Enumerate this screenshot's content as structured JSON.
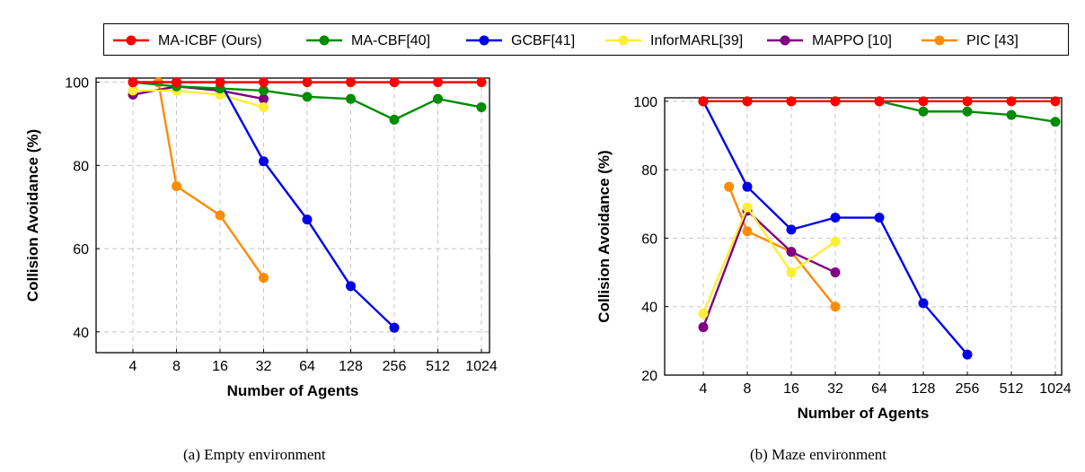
{
  "legend": [
    {
      "name": "MA-ICBF (Ours)",
      "color": "#ff0000"
    },
    {
      "name": "MA-CBF[40]",
      "color": "#008c00"
    },
    {
      "name": "GCBF[41]",
      "color": "#0000ee"
    },
    {
      "name": "InforMARL[39]",
      "color": "#ffee33"
    },
    {
      "name": "MAPPO [10]",
      "color": "#800080"
    },
    {
      "name": "PIC [43]",
      "color": "#ff8c00"
    }
  ],
  "chart_data": [
    {
      "type": "line",
      "caption": "(a) Empty environment",
      "xlabel": "Number of Agents",
      "ylabel": "Collision Avoidance (%)",
      "x_ticks": [
        "4",
        "8",
        "16",
        "32",
        "64",
        "128",
        "256",
        "512",
        "1024"
      ],
      "y_ticks": [
        40,
        60,
        80,
        100
      ],
      "ylim": [
        35,
        101
      ],
      "grid": true,
      "series": [
        {
          "name": "MA-ICBF (Ours)",
          "color": "#ff0000",
          "x": [
            4,
            8,
            16,
            32,
            64,
            128,
            256,
            512,
            1024
          ],
          "values": [
            100,
            100,
            100,
            100,
            100,
            100,
            100,
            100,
            100
          ]
        },
        {
          "name": "MA-CBF[40]",
          "color": "#008c00",
          "x": [
            4,
            8,
            16,
            32,
            64,
            128,
            256,
            512,
            1024
          ],
          "values": [
            100,
            99,
            98.5,
            98,
            96.5,
            96,
            91,
            96,
            94
          ]
        },
        {
          "name": "GCBF[41]",
          "color": "#0000ee",
          "x": [
            4,
            8,
            16,
            32,
            64,
            128,
            256
          ],
          "values": [
            100,
            100,
            100,
            81,
            67,
            51,
            41
          ]
        },
        {
          "name": "InforMARL[39]",
          "color": "#ffee33",
          "x": [
            4,
            8,
            16,
            32
          ],
          "values": [
            98,
            98,
            97,
            94
          ]
        },
        {
          "name": "MAPPO [10]",
          "color": "#800080",
          "x": [
            4,
            8,
            16,
            32
          ],
          "values": [
            97,
            99,
            98,
            96
          ]
        },
        {
          "name": "PIC [43]",
          "color": "#ff8c00",
          "x": [
            6,
            8,
            16,
            32
          ],
          "values": [
            100,
            75,
            68,
            53
          ]
        }
      ]
    },
    {
      "type": "line",
      "caption": "(b) Maze environment",
      "xlabel": "Number of Agents",
      "ylabel": "Collision Avoidance (%)",
      "x_ticks": [
        "4",
        "8",
        "16",
        "32",
        "64",
        "128",
        "256",
        "512",
        "1024"
      ],
      "y_ticks": [
        20,
        40,
        60,
        80,
        100
      ],
      "ylim": [
        20,
        101
      ],
      "grid": true,
      "series": [
        {
          "name": "MA-ICBF (Ours)",
          "color": "#ff0000",
          "x": [
            4,
            8,
            16,
            32,
            64,
            128,
            256,
            512,
            1024
          ],
          "values": [
            100,
            100,
            100,
            100,
            100,
            100,
            100,
            100,
            100
          ]
        },
        {
          "name": "MA-CBF[40]",
          "color": "#008c00",
          "x": [
            4,
            8,
            16,
            32,
            64,
            128,
            256,
            512,
            1024
          ],
          "values": [
            100,
            100,
            100,
            100,
            100,
            97,
            97,
            96,
            94
          ]
        },
        {
          "name": "GCBF[41]",
          "color": "#0000ee",
          "x": [
            4,
            8,
            16,
            32,
            64,
            128,
            256
          ],
          "values": [
            100,
            75,
            62.5,
            66,
            66,
            41,
            26
          ]
        },
        {
          "name": "InforMARL[39]",
          "color": "#ffee33",
          "x": [
            4,
            8,
            16,
            32
          ],
          "values": [
            38,
            69,
            50,
            59
          ]
        },
        {
          "name": "MAPPO [10]",
          "color": "#800080",
          "x": [
            4,
            8,
            16,
            32
          ],
          "values": [
            34,
            68,
            56,
            50
          ]
        },
        {
          "name": "PIC [43]",
          "color": "#ff8c00",
          "x": [
            6,
            8,
            16,
            32
          ],
          "values": [
            75,
            62,
            56,
            40
          ]
        }
      ]
    }
  ]
}
